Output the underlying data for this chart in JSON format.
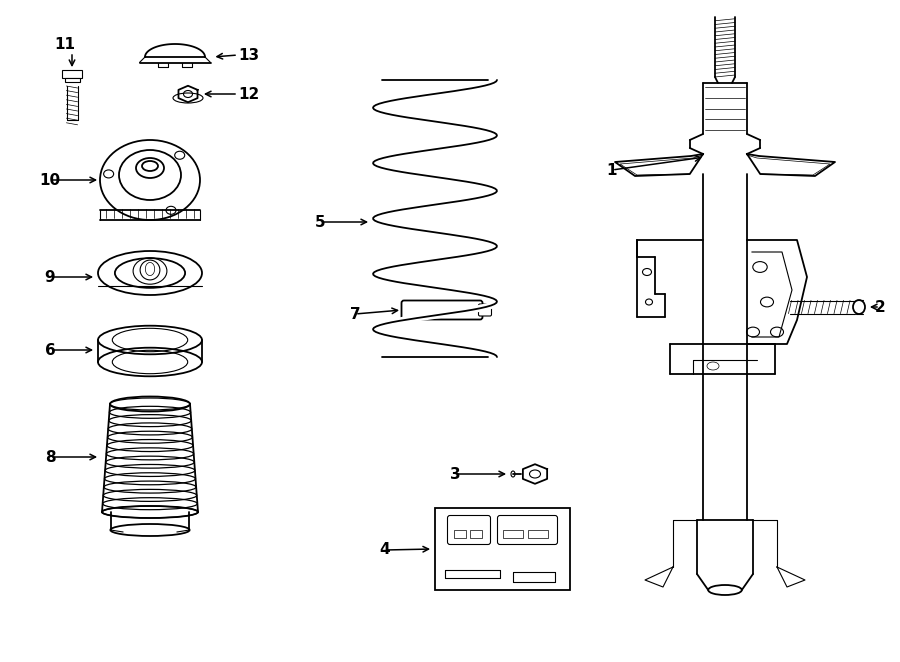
{
  "bg_color": "#ffffff",
  "lc": "#000000",
  "lw_main": 1.3,
  "lw_detail": 0.8,
  "lw_thin": 0.5,
  "fs": 11,
  "fig_w": 9.0,
  "fig_h": 6.62,
  "dpi": 100
}
